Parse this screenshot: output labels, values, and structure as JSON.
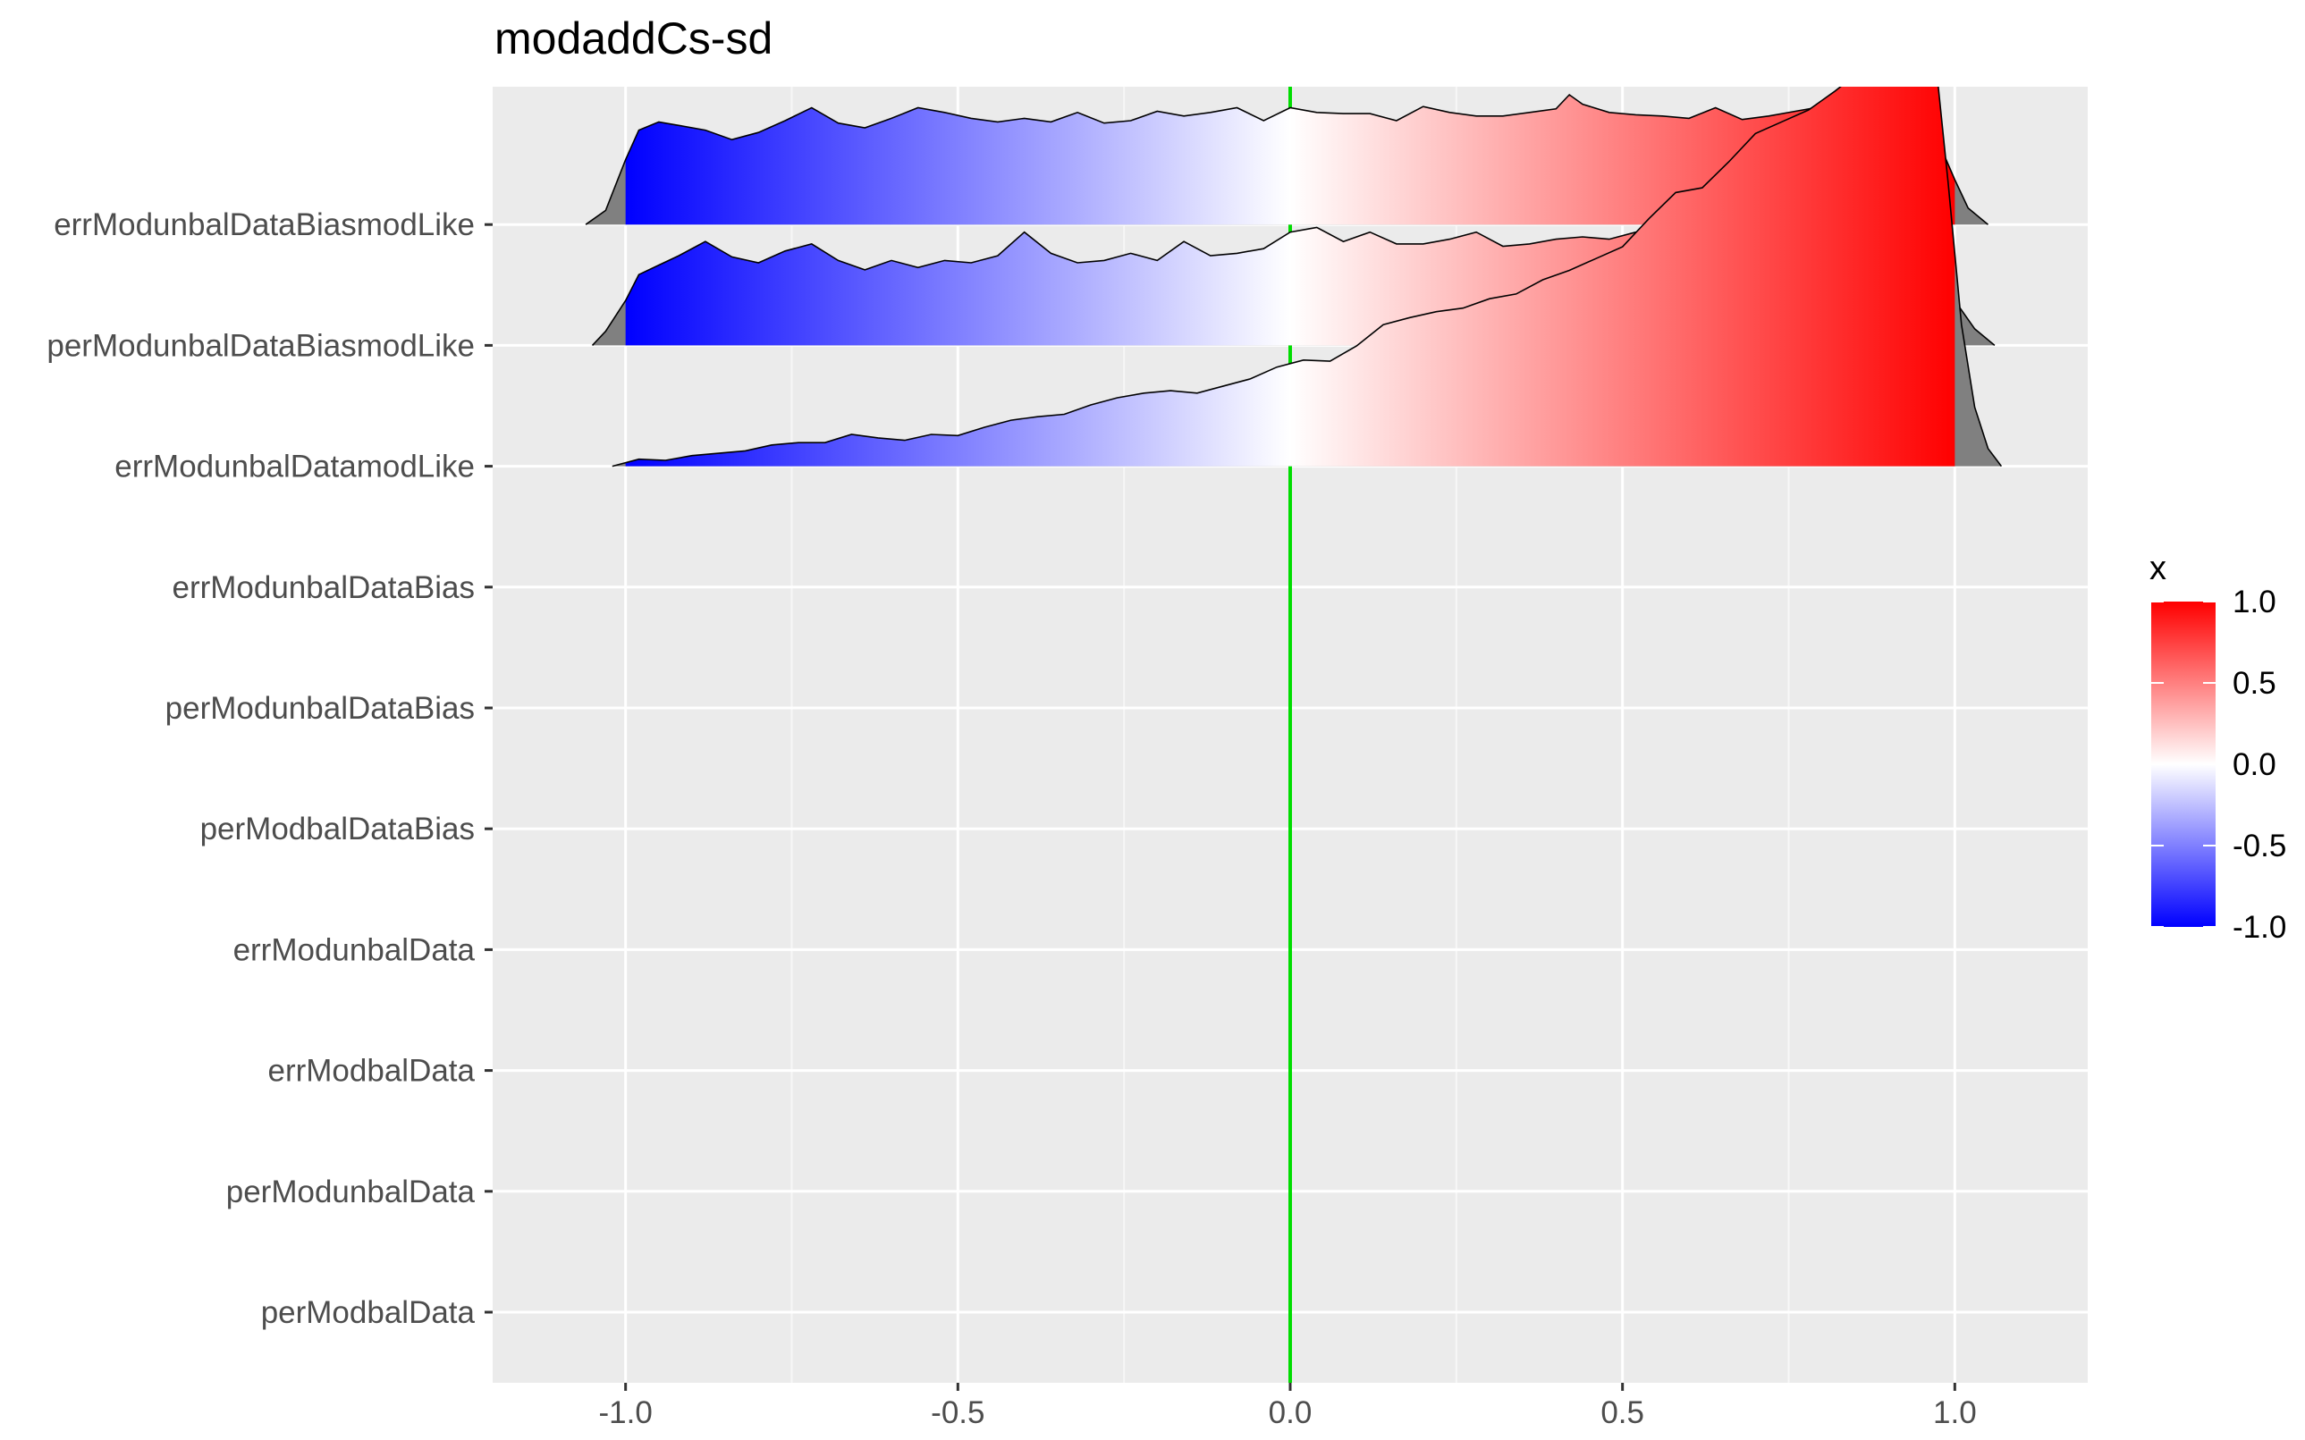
{
  "chart_data": {
    "type": "ridgeline",
    "title": "modaddCs-sd",
    "xlabel": "",
    "ylabel": "",
    "xlim": [
      -1.2,
      1.2
    ],
    "x_ticks": [
      -1.0,
      -0.5,
      0.0,
      0.5,
      1.0
    ],
    "x_tick_labels": [
      "-1.0",
      "-0.5",
      "0.0",
      "0.5",
      "1.0"
    ],
    "categories": [
      "perModbalData",
      "perModunbalData",
      "errModbalData",
      "errModunbalData",
      "perModbalDataBias",
      "perModunbalDataBias",
      "errModunbalDataBias",
      "errModunbalDatamodLike",
      "perModunbalDataBiasmodLike",
      "errModunbalDataBiasmodLike"
    ],
    "reference_line": {
      "x": 0.0,
      "color": "#00dd00"
    },
    "grid": true,
    "panel_background": "#ebebeb",
    "legend": {
      "title": "x",
      "position": "right",
      "labels": [
        "1.0",
        "0.5",
        "0.0",
        "-0.5",
        "-1.0"
      ],
      "values": [
        1.0,
        0.5,
        0.0,
        -0.5,
        -1.0
      ],
      "low_color": "#0000ff",
      "mid_color": "#ffffff",
      "high_color": "#ff0000"
    },
    "tail_color": "#808080",
    "series": [
      {
        "name": "errModunbalDataBiasmodLike",
        "support": [
          -1.06,
          1.05
        ],
        "density": [
          [
            -1.06,
            0.0
          ],
          [
            -1.03,
            0.12
          ],
          [
            -1.0,
            0.55
          ],
          [
            -0.98,
            0.8
          ],
          [
            -0.95,
            0.87
          ],
          [
            -0.92,
            0.84
          ],
          [
            -0.88,
            0.8
          ],
          [
            -0.84,
            0.72
          ],
          [
            -0.8,
            0.78
          ],
          [
            -0.76,
            0.88
          ],
          [
            -0.72,
            0.99
          ],
          [
            -0.68,
            0.86
          ],
          [
            -0.64,
            0.82
          ],
          [
            -0.6,
            0.9
          ],
          [
            -0.56,
            0.99
          ],
          [
            -0.52,
            0.95
          ],
          [
            -0.48,
            0.9
          ],
          [
            -0.44,
            0.87
          ],
          [
            -0.4,
            0.9
          ],
          [
            -0.36,
            0.87
          ],
          [
            -0.32,
            0.95
          ],
          [
            -0.28,
            0.86
          ],
          [
            -0.24,
            0.88
          ],
          [
            -0.2,
            0.96
          ],
          [
            -0.16,
            0.92
          ],
          [
            -0.12,
            0.95
          ],
          [
            -0.08,
            0.99
          ],
          [
            -0.04,
            0.88
          ],
          [
            0.0,
            0.99
          ],
          [
            0.04,
            0.95
          ],
          [
            0.08,
            0.94
          ],
          [
            0.12,
            0.94
          ],
          [
            0.16,
            0.88
          ],
          [
            0.2,
            1.0
          ],
          [
            0.24,
            0.95
          ],
          [
            0.28,
            0.92
          ],
          [
            0.32,
            0.92
          ],
          [
            0.36,
            0.95
          ],
          [
            0.4,
            0.98
          ],
          [
            0.42,
            1.1
          ],
          [
            0.44,
            1.02
          ],
          [
            0.48,
            0.95
          ],
          [
            0.52,
            0.93
          ],
          [
            0.56,
            0.92
          ],
          [
            0.6,
            0.9
          ],
          [
            0.64,
            0.99
          ],
          [
            0.68,
            0.89
          ],
          [
            0.72,
            0.92
          ],
          [
            0.76,
            0.96
          ],
          [
            0.8,
            1.0
          ],
          [
            0.84,
            0.96
          ],
          [
            0.88,
            0.92
          ],
          [
            0.92,
            0.96
          ],
          [
            0.95,
            0.9
          ],
          [
            0.98,
            0.64
          ],
          [
            1.0,
            0.38
          ],
          [
            1.02,
            0.14
          ],
          [
            1.05,
            0.0
          ]
        ]
      },
      {
        "name": "perModunbalDataBiasmodLike",
        "support": [
          -1.05,
          1.06
        ],
        "density": [
          [
            -1.05,
            0.0
          ],
          [
            -1.03,
            0.12
          ],
          [
            -1.0,
            0.38
          ],
          [
            -0.98,
            0.6
          ],
          [
            -0.95,
            0.68
          ],
          [
            -0.92,
            0.76
          ],
          [
            -0.88,
            0.88
          ],
          [
            -0.84,
            0.75
          ],
          [
            -0.8,
            0.7
          ],
          [
            -0.76,
            0.8
          ],
          [
            -0.72,
            0.86
          ],
          [
            -0.68,
            0.72
          ],
          [
            -0.64,
            0.64
          ],
          [
            -0.6,
            0.72
          ],
          [
            -0.56,
            0.66
          ],
          [
            -0.52,
            0.72
          ],
          [
            -0.48,
            0.7
          ],
          [
            -0.44,
            0.76
          ],
          [
            -0.4,
            0.96
          ],
          [
            -0.36,
            0.78
          ],
          [
            -0.32,
            0.7
          ],
          [
            -0.28,
            0.72
          ],
          [
            -0.24,
            0.78
          ],
          [
            -0.2,
            0.72
          ],
          [
            -0.16,
            0.88
          ],
          [
            -0.12,
            0.76
          ],
          [
            -0.08,
            0.78
          ],
          [
            -0.04,
            0.82
          ],
          [
            0.0,
            0.96
          ],
          [
            0.04,
            1.0
          ],
          [
            0.08,
            0.88
          ],
          [
            0.12,
            0.96
          ],
          [
            0.16,
            0.86
          ],
          [
            0.2,
            0.86
          ],
          [
            0.24,
            0.9
          ],
          [
            0.28,
            0.96
          ],
          [
            0.32,
            0.84
          ],
          [
            0.36,
            0.86
          ],
          [
            0.4,
            0.9
          ],
          [
            0.44,
            0.92
          ],
          [
            0.48,
            0.9
          ],
          [
            0.52,
            0.96
          ],
          [
            0.56,
            0.94
          ],
          [
            0.6,
            0.86
          ],
          [
            0.64,
            0.92
          ],
          [
            0.68,
            0.9
          ],
          [
            0.72,
            0.98
          ],
          [
            0.76,
            1.0
          ],
          [
            0.8,
            1.02
          ],
          [
            0.84,
            1.0
          ],
          [
            0.88,
            1.04
          ],
          [
            0.92,
            0.9
          ],
          [
            0.95,
            0.7
          ],
          [
            0.98,
            0.58
          ],
          [
            1.0,
            0.38
          ],
          [
            1.03,
            0.14
          ],
          [
            1.06,
            0.0
          ]
        ]
      },
      {
        "name": "errModunbalDatamodLike",
        "support": [
          -1.02,
          1.07
        ],
        "density": [
          [
            -1.02,
            0.0
          ],
          [
            -0.98,
            0.06
          ],
          [
            -0.94,
            0.05
          ],
          [
            -0.9,
            0.09
          ],
          [
            -0.86,
            0.11
          ],
          [
            -0.82,
            0.13
          ],
          [
            -0.78,
            0.18
          ],
          [
            -0.74,
            0.2
          ],
          [
            -0.7,
            0.2
          ],
          [
            -0.66,
            0.27
          ],
          [
            -0.62,
            0.24
          ],
          [
            -0.58,
            0.22
          ],
          [
            -0.54,
            0.27
          ],
          [
            -0.5,
            0.26
          ],
          [
            -0.46,
            0.33
          ],
          [
            -0.42,
            0.39
          ],
          [
            -0.38,
            0.42
          ],
          [
            -0.34,
            0.44
          ],
          [
            -0.3,
            0.52
          ],
          [
            -0.26,
            0.58
          ],
          [
            -0.22,
            0.62
          ],
          [
            -0.18,
            0.64
          ],
          [
            -0.14,
            0.62
          ],
          [
            -0.1,
            0.68
          ],
          [
            -0.06,
            0.74
          ],
          [
            -0.02,
            0.84
          ],
          [
            0.02,
            0.9
          ],
          [
            0.06,
            0.89
          ],
          [
            0.1,
            1.02
          ],
          [
            0.14,
            1.2
          ],
          [
            0.18,
            1.26
          ],
          [
            0.22,
            1.31
          ],
          [
            0.26,
            1.34
          ],
          [
            0.3,
            1.42
          ],
          [
            0.34,
            1.46
          ],
          [
            0.38,
            1.58
          ],
          [
            0.42,
            1.66
          ],
          [
            0.46,
            1.76
          ],
          [
            0.5,
            1.86
          ],
          [
            0.54,
            2.1
          ],
          [
            0.58,
            2.32
          ],
          [
            0.62,
            2.36
          ],
          [
            0.66,
            2.58
          ],
          [
            0.7,
            2.82
          ],
          [
            0.74,
            2.92
          ],
          [
            0.78,
            3.02
          ],
          [
            0.82,
            3.18
          ],
          [
            0.86,
            3.36
          ],
          [
            0.9,
            3.72
          ],
          [
            0.93,
            4.0
          ],
          [
            0.95,
            3.98
          ],
          [
            0.97,
            3.5
          ],
          [
            0.99,
            2.4
          ],
          [
            1.01,
            1.2
          ],
          [
            1.03,
            0.5
          ],
          [
            1.05,
            0.15
          ],
          [
            1.07,
            0.0
          ]
        ]
      }
    ]
  }
}
